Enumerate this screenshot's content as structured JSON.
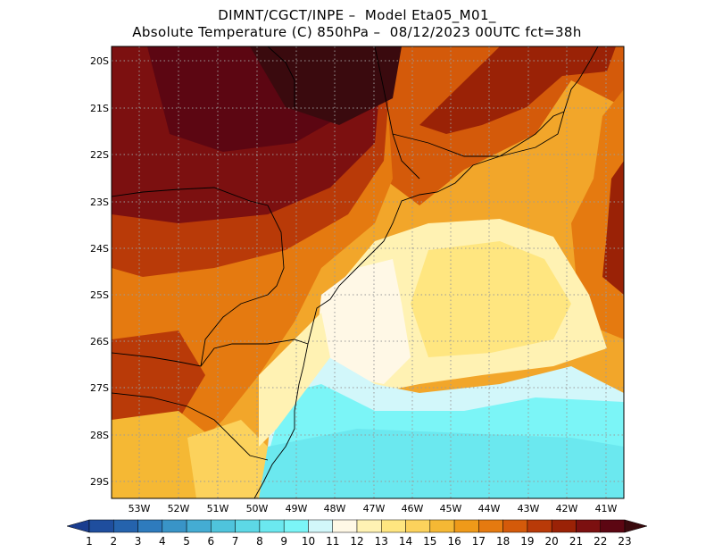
{
  "title_line1": "DIMNT/CGCT/INPE –  Model Eta05_M01_",
  "title_line2": "Absolute Temperature (C) 850hPa –  08/12/2023 00UTC fct=38h",
  "lat_labels": [
    "20S",
    "21S",
    "22S",
    "23S",
    "24S",
    "25S",
    "26S",
    "27S",
    "28S",
    "29S"
  ],
  "lon_labels": [
    "53W",
    "52W",
    "51W",
    "50W",
    "49W",
    "48W",
    "47W",
    "46W",
    "45W",
    "44W",
    "43W",
    "42W",
    "41W"
  ],
  "colorbar": {
    "labels": [
      "1",
      "2",
      "3",
      "4",
      "5",
      "6",
      "7",
      "8",
      "9",
      "10",
      "11",
      "12",
      "13",
      "14",
      "15",
      "16",
      "17",
      "18",
      "19",
      "20",
      "21",
      "22",
      "23"
    ],
    "colors": [
      "#1a3d8f",
      "#1f4e9e",
      "#2563ad",
      "#2e7bbd",
      "#3994c7",
      "#44acd3",
      "#4fc4dc",
      "#5dd8e6",
      "#6be8ef",
      "#7bf5f7",
      "#d2f7fa",
      "#fff8e6",
      "#fff2b3",
      "#ffe680",
      "#fcd25c",
      "#f5b834",
      "#ef9a19",
      "#e57a10",
      "#d45a0a",
      "#b93a08",
      "#9a2206",
      "#7c1010",
      "#5c0612",
      "#3a0a0e"
    ]
  }
}
